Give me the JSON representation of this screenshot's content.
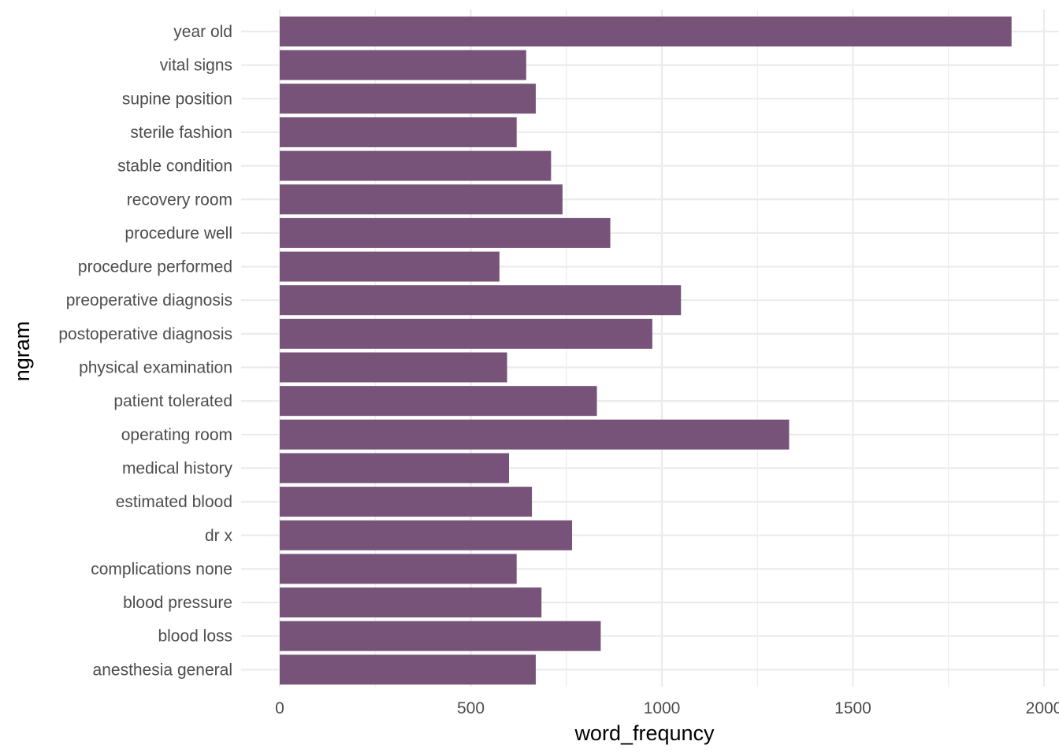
{
  "chart_data": {
    "type": "bar",
    "orientation": "horizontal",
    "xlabel": "word_frequncy",
    "ylabel": "ngram",
    "xlim": [
      0,
      2000
    ],
    "x_ticks": [
      0,
      500,
      1000,
      1500,
      2000
    ],
    "grid": true,
    "bar_color": "#775379",
    "categories": [
      "year old",
      "vital signs",
      "supine position",
      "sterile fashion",
      "stable condition",
      "recovery room",
      "procedure well",
      "procedure performed",
      "preoperative diagnosis",
      "postoperative diagnosis",
      "physical examination",
      "patient tolerated",
      "operating room",
      "medical history",
      "estimated blood",
      "dr x",
      "complications none",
      "blood pressure",
      "blood loss",
      "anesthesia general"
    ],
    "values": [
      1915,
      645,
      670,
      620,
      710,
      740,
      865,
      575,
      1050,
      975,
      595,
      830,
      1333,
      600,
      660,
      765,
      620,
      685,
      840,
      670
    ]
  }
}
